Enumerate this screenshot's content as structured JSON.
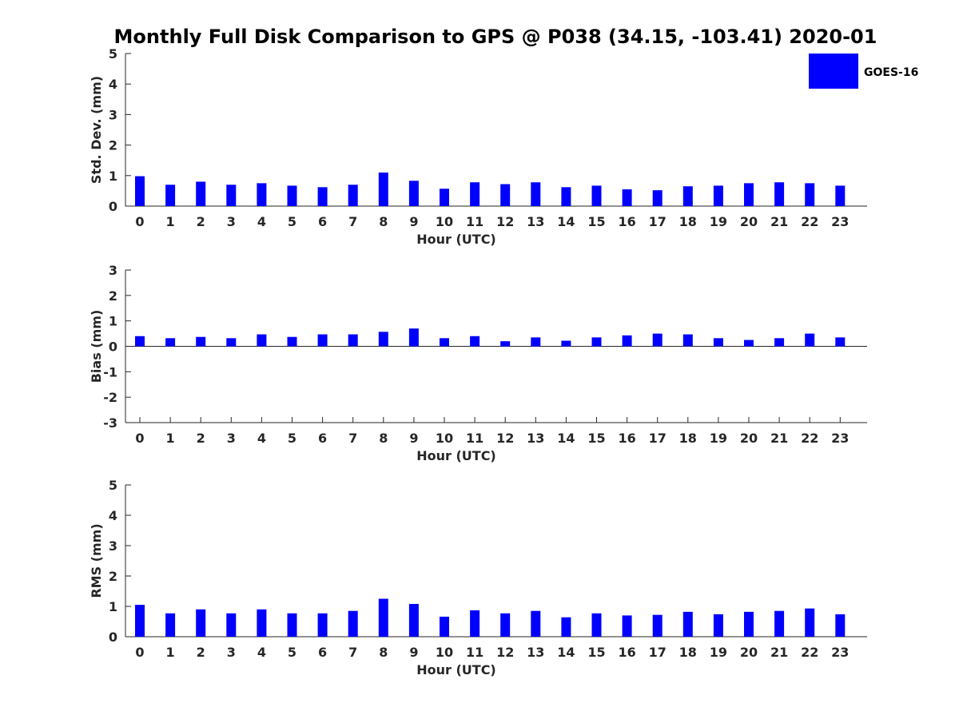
{
  "figure": {
    "title": "Monthly Full Disk Comparison to GPS @ P038 (34.15, -103.41) 2020-01",
    "legend": {
      "label": "GOES-16",
      "color": "#0000ff",
      "placement": "top-right"
    }
  },
  "chart_data": [
    {
      "type": "bar",
      "categories": [
        "0",
        "1",
        "2",
        "3",
        "4",
        "5",
        "6",
        "7",
        "8",
        "9",
        "10",
        "11",
        "12",
        "13",
        "14",
        "15",
        "16",
        "17",
        "18",
        "19",
        "20",
        "21",
        "22",
        "23"
      ],
      "series": [
        {
          "name": "GOES-16",
          "color": "#0000ff",
          "values": [
            0.98,
            0.7,
            0.8,
            0.7,
            0.75,
            0.67,
            0.62,
            0.7,
            1.1,
            0.83,
            0.57,
            0.78,
            0.72,
            0.78,
            0.62,
            0.67,
            0.55,
            0.52,
            0.65,
            0.67,
            0.75,
            0.78,
            0.75,
            0.67
          ]
        }
      ],
      "xlabel": "Hour (UTC)",
      "ylabel": "Std. Dev. (mm)",
      "ylim": [
        0,
        5
      ],
      "yticks": [
        "0",
        "1",
        "2",
        "3",
        "4",
        "5"
      ],
      "grid": false,
      "zero_line": false
    },
    {
      "type": "bar",
      "categories": [
        "0",
        "1",
        "2",
        "3",
        "4",
        "5",
        "6",
        "7",
        "8",
        "9",
        "10",
        "11",
        "12",
        "13",
        "14",
        "15",
        "16",
        "17",
        "18",
        "19",
        "20",
        "21",
        "22",
        "23"
      ],
      "series": [
        {
          "name": "GOES-16",
          "color": "#0000ff",
          "values": [
            0.4,
            0.32,
            0.37,
            0.32,
            0.47,
            0.37,
            0.47,
            0.47,
            0.57,
            0.7,
            0.32,
            0.4,
            0.2,
            0.35,
            0.22,
            0.35,
            0.43,
            0.5,
            0.47,
            0.32,
            0.25,
            0.32,
            0.5,
            0.35
          ]
        }
      ],
      "xlabel": "Hour (UTC)",
      "ylabel": "Bias (mm)",
      "ylim": [
        -3,
        3
      ],
      "yticks": [
        "-3",
        "-2",
        "-1",
        "0",
        "1",
        "2",
        "3"
      ],
      "grid": false,
      "zero_line": true
    },
    {
      "type": "bar",
      "categories": [
        "0",
        "1",
        "2",
        "3",
        "4",
        "5",
        "6",
        "7",
        "8",
        "9",
        "10",
        "11",
        "12",
        "13",
        "14",
        "15",
        "16",
        "17",
        "18",
        "19",
        "20",
        "21",
        "22",
        "23"
      ],
      "series": [
        {
          "name": "GOES-16",
          "color": "#0000ff",
          "values": [
            1.05,
            0.77,
            0.9,
            0.77,
            0.9,
            0.77,
            0.77,
            0.85,
            1.25,
            1.08,
            0.66,
            0.87,
            0.77,
            0.85,
            0.64,
            0.77,
            0.7,
            0.72,
            0.82,
            0.74,
            0.82,
            0.85,
            0.93,
            0.74
          ]
        }
      ],
      "xlabel": "Hour (UTC)",
      "ylabel": "RMS (mm)",
      "ylim": [
        0,
        5
      ],
      "yticks": [
        "0",
        "1",
        "2",
        "3",
        "4",
        "5"
      ],
      "grid": false,
      "zero_line": false
    }
  ]
}
